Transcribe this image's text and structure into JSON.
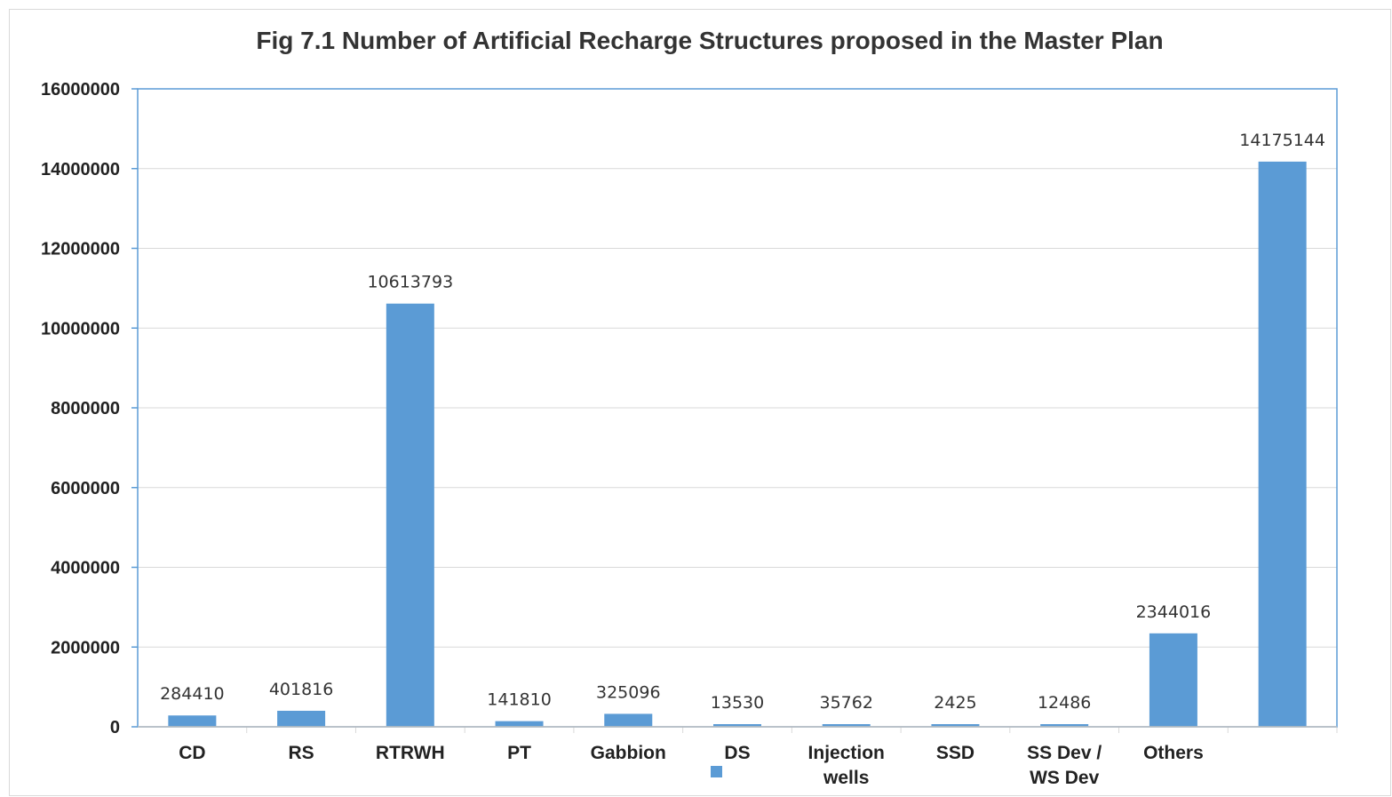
{
  "chart_data": {
    "type": "bar",
    "title": "Fig 7.1 Number of Artificial Recharge Structures proposed in the Master Plan",
    "xlabel": "",
    "ylabel": "",
    "categories": [
      [
        "CD"
      ],
      [
        "RS"
      ],
      [
        "RTRWH"
      ],
      [
        "PT"
      ],
      [
        "Gabbion"
      ],
      [
        "DS"
      ],
      [
        "Injection",
        "wells"
      ],
      [
        "SSD"
      ],
      [
        "SS Dev /",
        "WS Dev"
      ],
      [
        "Others"
      ],
      []
    ],
    "values": [
      284410,
      401816,
      10613793,
      141810,
      325096,
      13530,
      35762,
      2425,
      12486,
      2344016,
      14175144
    ],
    "data_labels": [
      "284410",
      "401816",
      "10613793",
      "141810",
      "325096",
      "13530",
      "35762",
      "2425",
      "12486",
      "2344016",
      "14175144"
    ],
    "yticks": [
      "0",
      "2000000",
      "4000000",
      "6000000",
      "8000000",
      "10000000",
      "12000000",
      "14000000",
      "16000000"
    ],
    "ylim": [
      0,
      16000000
    ],
    "grid": true,
    "legend": "bottom",
    "colors": {
      "bar": "#5b9bd5",
      "axis": "#5b9bd5",
      "grid": "#d9d9d9"
    }
  }
}
